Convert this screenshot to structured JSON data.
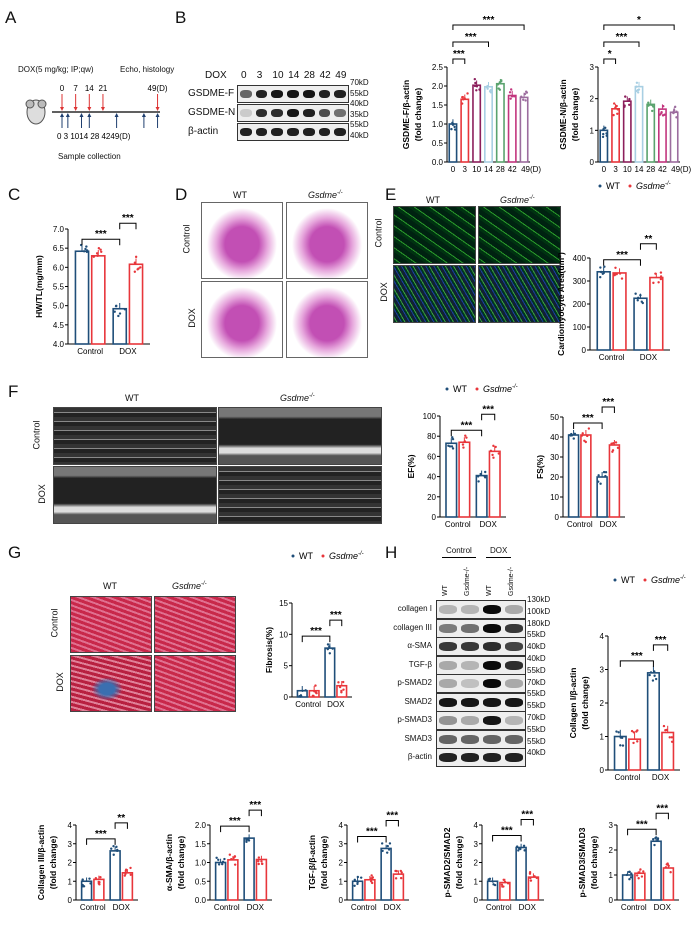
{
  "panels": {
    "A": "A",
    "B": "B",
    "C": "C",
    "D": "D",
    "E": "E",
    "F": "F",
    "G": "G",
    "H": "H"
  },
  "legend": {
    "wt": "WT",
    "ko": "Gsdme",
    "ko_sup": "-/-"
  },
  "colors": {
    "wt": "#1f4e79",
    "ko": "#e8363b",
    "b_series": [
      "#1f4e79",
      "#e8363b",
      "#8c1f5c",
      "#a8cfe3",
      "#5aa36e",
      "#c2357e",
      "#9c6d9e"
    ]
  },
  "timeline": {
    "treatment": "DOX(5 mg/kg; IP;qw)",
    "endpoint": "Echo, histology",
    "dose_days": [
      "0",
      "7",
      "14",
      "21"
    ],
    "end_day": "49(D)",
    "sample_days_label": "0 3 1014      28        4249(D)",
    "sample_days": [
      0,
      3,
      10,
      14,
      28,
      42,
      49
    ],
    "dose_day_values": [
      0,
      7,
      14,
      21,
      49
    ],
    "sample_label": "Sample collection"
  },
  "blot_b": {
    "header": "DOX",
    "lanes": [
      "0",
      "3",
      "10",
      "14",
      "28",
      "42",
      "49"
    ],
    "rows": [
      {
        "label": "GSDME-F",
        "intensity": [
          0.6,
          0.9,
          0.95,
          0.95,
          0.95,
          0.9,
          0.9
        ]
      },
      {
        "label": "GSDME-N",
        "intensity": [
          0.15,
          0.85,
          0.85,
          0.95,
          0.9,
          0.7,
          0.55
        ]
      },
      {
        "label": "β-actin",
        "intensity": [
          0.9,
          0.9,
          0.9,
          0.9,
          0.9,
          0.9,
          0.9
        ]
      }
    ],
    "markers": [
      "70kD",
      "55kD",
      "40kD",
      "35kD",
      "55kD",
      "40kD"
    ]
  },
  "images": {
    "col_wt": "WT",
    "col_ko": "Gsdme",
    "col_ko_sup": "-/-",
    "row_control": "Control",
    "row_dox": "DOX"
  },
  "blot_h": {
    "groups": [
      "Control",
      "DOX"
    ],
    "lanes": [
      "WT",
      "Gsdme-/-",
      "WT",
      "Gsdme-/-"
    ],
    "rows": [
      {
        "label": "collagen I",
        "intensity": [
          0.25,
          0.25,
          1,
          0.3
        ]
      },
      {
        "label": "collagen III",
        "intensity": [
          0.5,
          0.55,
          1,
          0.8
        ]
      },
      {
        "label": "α-SMA",
        "intensity": [
          0.8,
          0.8,
          0.85,
          0.75
        ]
      },
      {
        "label": "TGF-β",
        "intensity": [
          0.3,
          0.25,
          1,
          0.85
        ]
      },
      {
        "label": "p-SMAD2",
        "intensity": [
          0.3,
          0.2,
          1,
          0.3
        ]
      },
      {
        "label": "SMAD2",
        "intensity": [
          0.95,
          0.95,
          0.95,
          0.95
        ]
      },
      {
        "label": "p-SMAD3",
        "intensity": [
          0.4,
          0.3,
          0.95,
          0.25
        ]
      },
      {
        "label": "SMAD3",
        "intensity": [
          0.6,
          0.6,
          0.6,
          0.6
        ]
      },
      {
        "label": "β-actin",
        "intensity": [
          0.9,
          0.9,
          0.9,
          0.9
        ]
      }
    ],
    "markers": [
      "130kD",
      "100kD",
      "180kD",
      "55kD",
      "40kD",
      "40kD",
      "55kD",
      "70kD",
      "55kD",
      "55kD",
      "70kD",
      "55kD",
      "55kD",
      "40kD"
    ]
  },
  "chart_data": [
    {
      "id": "gsdmef",
      "type": "bar",
      "categories": [
        "0",
        "3",
        "10",
        "14",
        "28",
        "42",
        "49(D)"
      ],
      "values": [
        1.0,
        1.65,
        2.02,
        1.98,
        2.06,
        1.75,
        1.7
      ],
      "ylabel": "GSDME-F/β-actin",
      "ylabel2": "(fold change)",
      "ylim": [
        0,
        2.5
      ],
      "yticks": [
        "0.0",
        "0.5",
        "1.0",
        "1.5",
        "2.0",
        "2.5"
      ],
      "sig": [
        {
          "a": 0,
          "b": 1,
          "label": "***"
        },
        {
          "a": 0,
          "b": 3,
          "label": "***"
        },
        {
          "a": 0,
          "b": 6,
          "label": "***"
        }
      ]
    },
    {
      "id": "gsdmen",
      "type": "bar",
      "categories": [
        "0",
        "3",
        "10",
        "14",
        "28",
        "42",
        "49(D)"
      ],
      "values": [
        1.0,
        1.68,
        1.92,
        2.38,
        1.82,
        1.67,
        1.57
      ],
      "ylabel": "GSDME-N/β-actin",
      "ylabel2": "(fold change)",
      "ylim": [
        0,
        3
      ],
      "yticks": [
        "0",
        "1",
        "2",
        "3"
      ],
      "sig": [
        {
          "a": 0,
          "b": 1,
          "label": "*"
        },
        {
          "a": 0,
          "b": 3,
          "label": "***"
        },
        {
          "a": 0,
          "b": 6,
          "label": "*"
        }
      ]
    },
    {
      "id": "hwtl",
      "type": "bar",
      "categories": [
        "Control",
        "DOX"
      ],
      "series": [
        {
          "name": "WT",
          "values": [
            6.42,
            4.92
          ]
        },
        {
          "name": "Gsdme-/-",
          "values": [
            6.3,
            6.08
          ]
        }
      ],
      "ylabel": "HW/TL(mg/mm)",
      "ylim": [
        4,
        7
      ],
      "yticks": [
        "4.0",
        "4.5",
        "5.0",
        "5.5",
        "6.0",
        "6.5",
        "7.0"
      ],
      "sig": [
        {
          "label": "***",
          "type": "wt"
        },
        {
          "label": "***",
          "type": "dox"
        }
      ]
    },
    {
      "id": "cma",
      "type": "bar",
      "categories": [
        "Control",
        "DOX"
      ],
      "series": [
        {
          "name": "WT",
          "values": [
            340,
            225
          ]
        },
        {
          "name": "Gsdme-/-",
          "values": [
            335,
            315
          ]
        }
      ],
      "ylabel": "Cardiomyocyte Area(um²)",
      "ylim": [
        0,
        400
      ],
      "yticks": [
        "0",
        "100",
        "200",
        "300",
        "400"
      ],
      "sig": [
        {
          "label": "***",
          "type": "wt"
        },
        {
          "label": "**",
          "type": "dox"
        }
      ]
    },
    {
      "id": "ef",
      "type": "bar",
      "categories": [
        "Control",
        "DOX"
      ],
      "series": [
        {
          "name": "WT",
          "values": [
            73,
            41
          ]
        },
        {
          "name": "Gsdme-/-",
          "values": [
            74,
            65
          ]
        }
      ],
      "ylabel": "EF(%)",
      "ylim": [
        0,
        100
      ],
      "yticks": [
        "0",
        "20",
        "40",
        "60",
        "80",
        "100"
      ],
      "sig": [
        {
          "label": "***",
          "type": "wt"
        },
        {
          "label": "***",
          "type": "dox"
        }
      ]
    },
    {
      "id": "fs",
      "type": "bar",
      "categories": [
        "Control",
        "DOX"
      ],
      "series": [
        {
          "name": "WT",
          "values": [
            41,
            20
          ]
        },
        {
          "name": "Gsdme-/-",
          "values": [
            41,
            36
          ]
        }
      ],
      "ylabel": "FS(%)",
      "ylim": [
        0,
        50
      ],
      "yticks": [
        "0",
        "10",
        "20",
        "30",
        "40",
        "50"
      ],
      "sig": [
        {
          "label": "***",
          "type": "wt"
        },
        {
          "label": "***",
          "type": "dox"
        }
      ]
    },
    {
      "id": "fib",
      "type": "bar",
      "categories": [
        "Control",
        "DOX"
      ],
      "series": [
        {
          "name": "WT",
          "values": [
            1.0,
            7.8
          ]
        },
        {
          "name": "Gsdme-/-",
          "values": [
            1.0,
            1.8
          ]
        }
      ],
      "ylabel": "Fibrosis(%)",
      "ylim": [
        0,
        15
      ],
      "yticks": [
        "0",
        "5",
        "10",
        "15"
      ],
      "sig": [
        {
          "label": "***",
          "type": "wt"
        },
        {
          "label": "***",
          "type": "dox"
        }
      ]
    },
    {
      "id": "col1",
      "type": "bar",
      "categories": [
        "Control",
        "DOX"
      ],
      "series": [
        {
          "name": "WT",
          "values": [
            1.0,
            2.9
          ]
        },
        {
          "name": "Gsdme-/-",
          "values": [
            0.92,
            1.12
          ]
        }
      ],
      "ylabel": "Collagen I/β-actin",
      "ylabel2": "(fold change)",
      "ylim": [
        0,
        4
      ],
      "yticks": [
        "0",
        "1",
        "2",
        "3",
        "4"
      ],
      "sig": [
        {
          "label": "***",
          "type": "wt"
        },
        {
          "label": "***",
          "type": "dox"
        }
      ]
    },
    {
      "id": "col3",
      "type": "bar",
      "categories": [
        "Control",
        "DOX"
      ],
      "series": [
        {
          "name": "WT",
          "values": [
            1.0,
            2.62
          ]
        },
        {
          "name": "Gsdme-/-",
          "values": [
            1.1,
            1.45
          ]
        }
      ],
      "ylabel": "Collagen III/β-actin",
      "ylabel2": "(fold change)",
      "ylim": [
        0,
        4
      ],
      "yticks": [
        "0",
        "1",
        "2",
        "3",
        "4"
      ],
      "sig": [
        {
          "label": "***",
          "type": "wt"
        },
        {
          "label": "**",
          "type": "dox"
        }
      ]
    },
    {
      "id": "asma",
      "type": "bar",
      "categories": [
        "Control",
        "DOX"
      ],
      "series": [
        {
          "name": "WT",
          "values": [
            1.0,
            1.65
          ]
        },
        {
          "name": "Gsdme-/-",
          "values": [
            1.07,
            1.08
          ]
        }
      ],
      "ylabel": "α-SMA/β-actin",
      "ylabel2": "(fold change)",
      "ylim": [
        0,
        2
      ],
      "yticks": [
        "0.0",
        "0.5",
        "1.0",
        "1.5",
        "2.0"
      ],
      "sig": [
        {
          "label": "***",
          "type": "wt"
        },
        {
          "label": "***",
          "type": "dox"
        }
      ]
    },
    {
      "id": "tgfb",
      "type": "bar",
      "categories": [
        "Control",
        "DOX"
      ],
      "series": [
        {
          "name": "WT",
          "values": [
            1.0,
            2.75
          ]
        },
        {
          "name": "Gsdme-/-",
          "values": [
            1.08,
            1.38
          ]
        }
      ],
      "ylabel": "TGF-β/β-actin",
      "ylabel2": "(fold change)",
      "ylim": [
        0,
        4
      ],
      "yticks": [
        "0",
        "1",
        "2",
        "3",
        "4"
      ],
      "sig": [
        {
          "label": "***",
          "type": "wt"
        },
        {
          "label": "***",
          "type": "dox"
        }
      ]
    },
    {
      "id": "psmad2",
      "type": "bar",
      "categories": [
        "Control",
        "DOX"
      ],
      "series": [
        {
          "name": "WT",
          "values": [
            1.0,
            2.8
          ]
        },
        {
          "name": "Gsdme-/-",
          "values": [
            0.93,
            1.22
          ]
        }
      ],
      "ylabel": "p-SMAD2/SMAD2",
      "ylabel2": "(fold change)",
      "ylim": [
        0,
        4
      ],
      "yticks": [
        "0",
        "1",
        "2",
        "3",
        "4"
      ],
      "sig": [
        {
          "label": "***",
          "type": "wt"
        },
        {
          "label": "***",
          "type": "dox"
        }
      ]
    },
    {
      "id": "psmad3",
      "type": "bar",
      "categories": [
        "Control",
        "DOX"
      ],
      "series": [
        {
          "name": "WT",
          "values": [
            1.0,
            2.35
          ]
        },
        {
          "name": "Gsdme-/-",
          "values": [
            1.07,
            1.28
          ]
        }
      ],
      "ylabel": "p-SMAD3/SMAD3",
      "ylabel2": "(fold change)",
      "ylim": [
        0,
        3
      ],
      "yticks": [
        "0",
        "1",
        "2",
        "3"
      ],
      "sig": [
        {
          "label": "***",
          "type": "wt"
        },
        {
          "label": "***",
          "type": "dox"
        }
      ]
    }
  ]
}
